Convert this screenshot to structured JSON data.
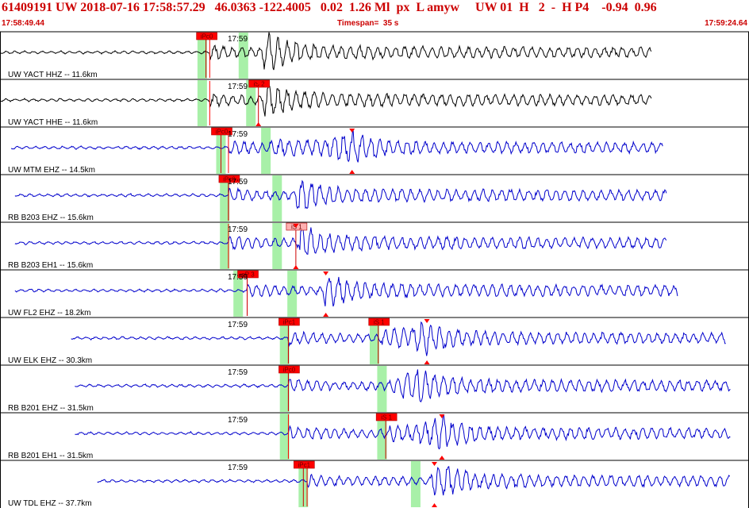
{
  "header": {
    "title": "61409191 UW 2018-07-16 17:58:57.29   46.0363 -122.4005   0.02  1.26 Ml  px  L amyw     UW 01  H   2  -  H P4    -0.94  0.96",
    "start_time": "17:58:49.44",
    "timespan": "Timespan=  35 s",
    "end_time": "17:59:24.64"
  },
  "colors": {
    "header_text": "#cc0000",
    "trace_z": "#000000",
    "trace": "#0000cc",
    "pick_fill": "#ff0000",
    "pick_fill_light": "#ffb0b0",
    "window": "#a8f0a8",
    "frame": "#000000"
  },
  "chart_data": {
    "type": "line",
    "x_range": [
      "17:58:49.44",
      "17:59:24.64"
    ],
    "minute_label": "17:59",
    "series": [
      {
        "name": "UW YACT HHZ -- 11.6km",
        "color": "#000000",
        "data_start": 0.0,
        "data_end": 0.87,
        "onset": 0.28,
        "s_onset": 0.35,
        "picks": [
          {
            "label": "iPc0",
            "pos": 0.275,
            "light": false,
            "marker": false
          }
        ],
        "windows": [
          0.27,
          0.325
        ],
        "peak": 0.36
      },
      {
        "name": "UW YACT HHE -- 11.6km",
        "color": "#000000",
        "data_start": 0.0,
        "data_end": 0.87,
        "onset": 0.28,
        "s_onset": 0.35,
        "picks": [
          {
            "label": "iS 2",
            "pos": 0.345,
            "light": false,
            "marker": true
          }
        ],
        "windows": [
          0.27,
          0.335
        ],
        "peak": 0.36
      },
      {
        "name": "UW MTM EHZ -- 14.5km",
        "color": "#0000cc",
        "data_start": 0.015,
        "data_end": 0.885,
        "onset": 0.305,
        "s_onset": 0.36,
        "picks": [
          {
            "label": "iPc0",
            "pos": 0.295,
            "light": false,
            "marker": false
          },
          {
            "label": "",
            "pos": 0.47,
            "light": false,
            "marker": true
          }
        ],
        "windows": [
          0.295,
          0.355
        ],
        "peak": 0.47
      },
      {
        "name": "RB B203 EHZ -- 15.6km",
        "color": "#0000cc",
        "data_start": 0.02,
        "data_end": 0.89,
        "onset": 0.305,
        "s_onset": 0.395,
        "picks": [
          {
            "label": "iPc0",
            "pos": 0.305,
            "light": false,
            "marker": false
          }
        ],
        "windows": [
          0.3,
          0.37
        ],
        "peak": 0.4
      },
      {
        "name": "RB B203 EH1 -- 15.6km",
        "color": "#0000cc",
        "data_start": 0.02,
        "data_end": 0.89,
        "onset": 0.305,
        "s_onset": 0.4,
        "picks": [
          {
            "label": "iS 1",
            "pos": 0.395,
            "light": true,
            "marker": true
          }
        ],
        "windows": [
          0.3,
          0.37
        ],
        "peak": 0.405
      },
      {
        "name": "UW FL2 EHZ -- 18.2km",
        "color": "#0000cc",
        "data_start": 0.02,
        "data_end": 0.905,
        "onset": 0.33,
        "s_onset": 0.43,
        "picks": [
          {
            "label": "eP 3",
            "pos": 0.33,
            "light": false,
            "marker": false
          },
          {
            "label": "",
            "pos": 0.435,
            "light": false,
            "marker": true
          }
        ],
        "windows": [
          0.318,
          0.39
        ],
        "peak": 0.435
      },
      {
        "name": "UW ELK EHZ -- 30.3km",
        "color": "#0000cc",
        "data_start": 0.095,
        "data_end": 0.97,
        "onset": 0.385,
        "s_onset": 0.51,
        "picks": [
          {
            "label": "iPc1",
            "pos": 0.385,
            "light": false,
            "marker": false
          },
          {
            "label": "iS 1",
            "pos": 0.505,
            "light": false,
            "marker": false
          },
          {
            "label": "",
            "pos": 0.57,
            "light": false,
            "marker": true
          }
        ],
        "windows": [
          0.38,
          0.5
        ],
        "peak": 0.57
      },
      {
        "name": "RB B201 EHZ -- 31.5km",
        "color": "#0000cc",
        "data_start": 0.1,
        "data_end": 0.975,
        "onset": 0.385,
        "s_onset": 0.52,
        "picks": [
          {
            "label": "iPc0",
            "pos": 0.385,
            "light": false,
            "marker": false
          }
        ],
        "windows": [
          0.38,
          0.51
        ],
        "peak": 0.56
      },
      {
        "name": "RB B201 EH1 -- 31.5km",
        "color": "#0000cc",
        "data_start": 0.1,
        "data_end": 0.975,
        "onset": 0.385,
        "s_onset": 0.52,
        "picks": [
          {
            "label": "iS 1",
            "pos": 0.515,
            "light": false,
            "marker": false
          },
          {
            "label": "",
            "pos": 0.59,
            "light": false,
            "marker": true
          }
        ],
        "windows": [
          0.38,
          0.51
        ],
        "peak": 0.59
      },
      {
        "name": "UW TDL EHZ -- 37.7km",
        "color": "#0000cc",
        "data_start": 0.13,
        "data_end": 0.975,
        "onset": 0.41,
        "s_onset": 0.575,
        "picks": [
          {
            "label": "iPc1",
            "pos": 0.405,
            "light": false,
            "marker": false
          },
          {
            "label": "",
            "pos": 0.58,
            "light": false,
            "marker": true
          }
        ],
        "windows": [
          0.405,
          0.555
        ],
        "peak": 0.585
      }
    ]
  }
}
